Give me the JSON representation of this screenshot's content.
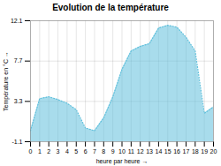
{
  "chart_data": {
    "type": "area",
    "title": "Evolution de la température",
    "xlabel": "heure par heure",
    "ylabel": "Température en °C",
    "x": [
      0,
      1,
      2,
      3,
      4,
      5,
      6,
      7,
      8,
      9,
      10,
      11,
      12,
      13,
      14,
      15,
      16,
      17,
      18,
      19,
      20
    ],
    "values": [
      0.1,
      3.6,
      3.8,
      3.5,
      3.1,
      2.4,
      0.4,
      0.1,
      1.5,
      3.8,
      6.8,
      8.8,
      9.3,
      9.6,
      11.3,
      11.6,
      11.4,
      10.3,
      8.8,
      2.0,
      2.7
    ],
    "color": "#60c0dc",
    "line_style": "dotted",
    "xlim": [
      0,
      20
    ],
    "xticks": [
      0,
      1,
      2,
      3,
      4,
      5,
      6,
      7,
      8,
      9,
      10,
      11,
      12,
      13,
      14,
      15,
      16,
      17,
      18,
      19,
      20
    ],
    "ylim": [
      -1.1,
      12.1
    ],
    "yticks": [
      -1.1,
      3.3,
      7.7,
      12.1
    ],
    "grid": true
  }
}
